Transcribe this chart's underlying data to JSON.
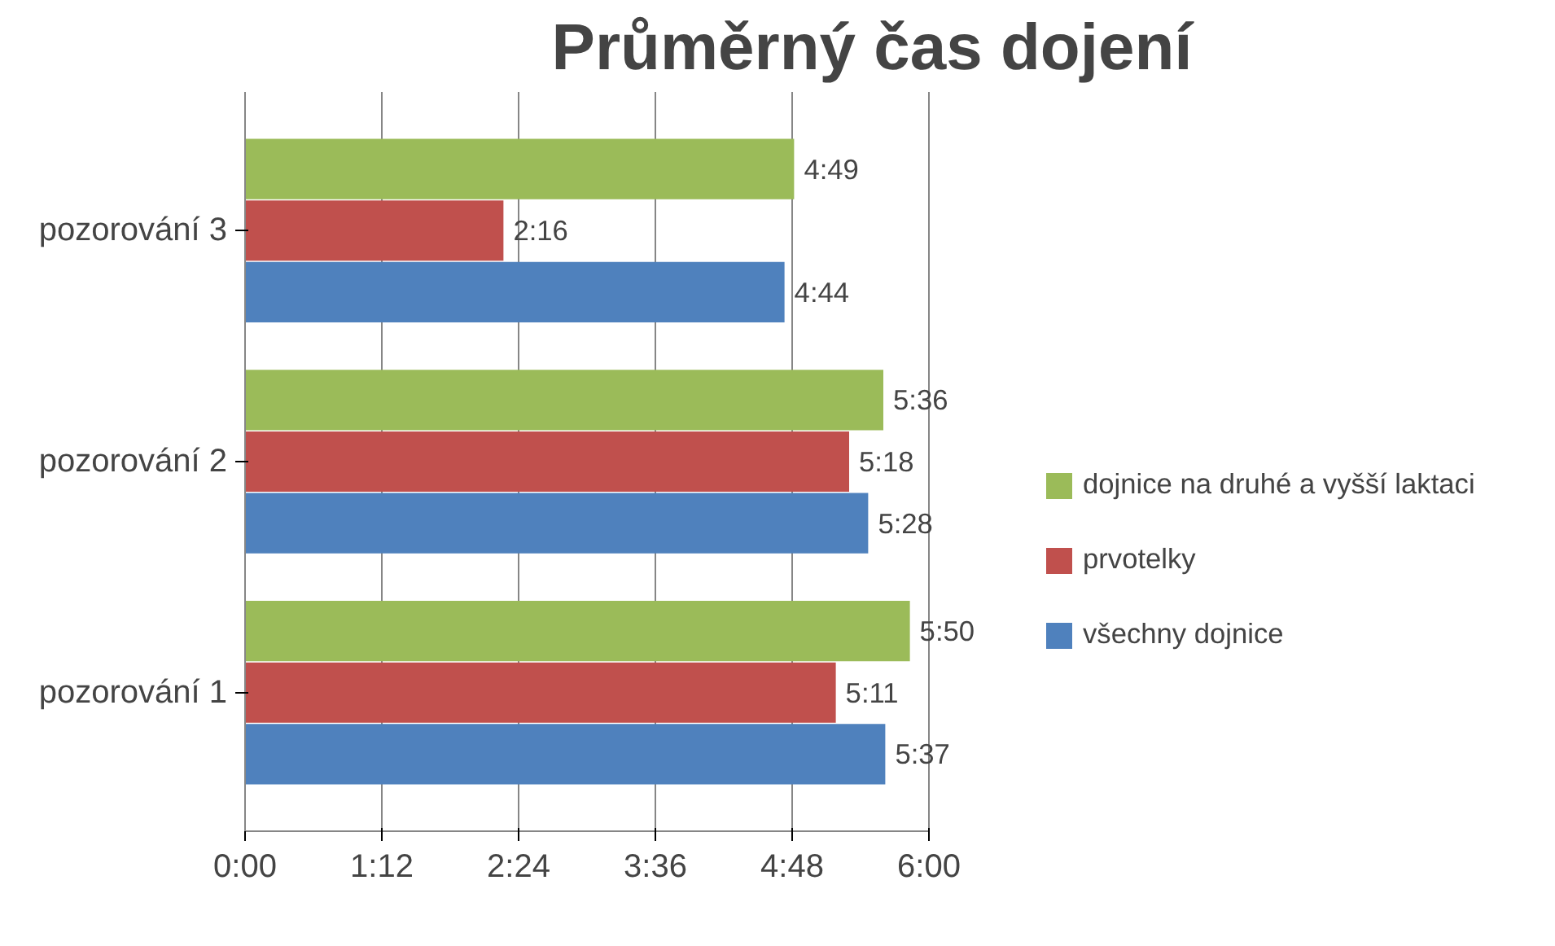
{
  "chart_data": {
    "type": "bar",
    "orientation": "horizontal",
    "title": "Průměrný čas dojení",
    "categories": [
      "pozorování 3",
      "pozorování 2",
      "pozorování 1"
    ],
    "series": [
      {
        "name": "všechny dojnice",
        "color": "#4f81bd",
        "values": [
          4.733,
          5.467,
          5.617
        ],
        "value_labels": [
          "4:44",
          "5:28",
          "5:37"
        ]
      },
      {
        "name": "prvotelky",
        "color": "#c0504d",
        "values": [
          2.267,
          5.3,
          5.183
        ],
        "value_labels": [
          "2:16",
          "5:18",
          "5:11"
        ]
      },
      {
        "name": "dojnice na druhé a vyšší laktaci",
        "color": "#9bbb59",
        "values": [
          4.817,
          5.6,
          5.833
        ],
        "value_labels": [
          "4:49",
          "5:36",
          "5:50"
        ]
      }
    ],
    "xlim": [
      0,
      6
    ],
    "xticks": [
      {
        "value": 0,
        "label": "0:00"
      },
      {
        "value": 1.2,
        "label": "1:12"
      },
      {
        "value": 2.4,
        "label": "2:24"
      },
      {
        "value": 3.6,
        "label": "3:36"
      },
      {
        "value": 4.8,
        "label": "4:48"
      },
      {
        "value": 6,
        "label": "6:00"
      }
    ],
    "grid": "x",
    "legend": "right"
  }
}
